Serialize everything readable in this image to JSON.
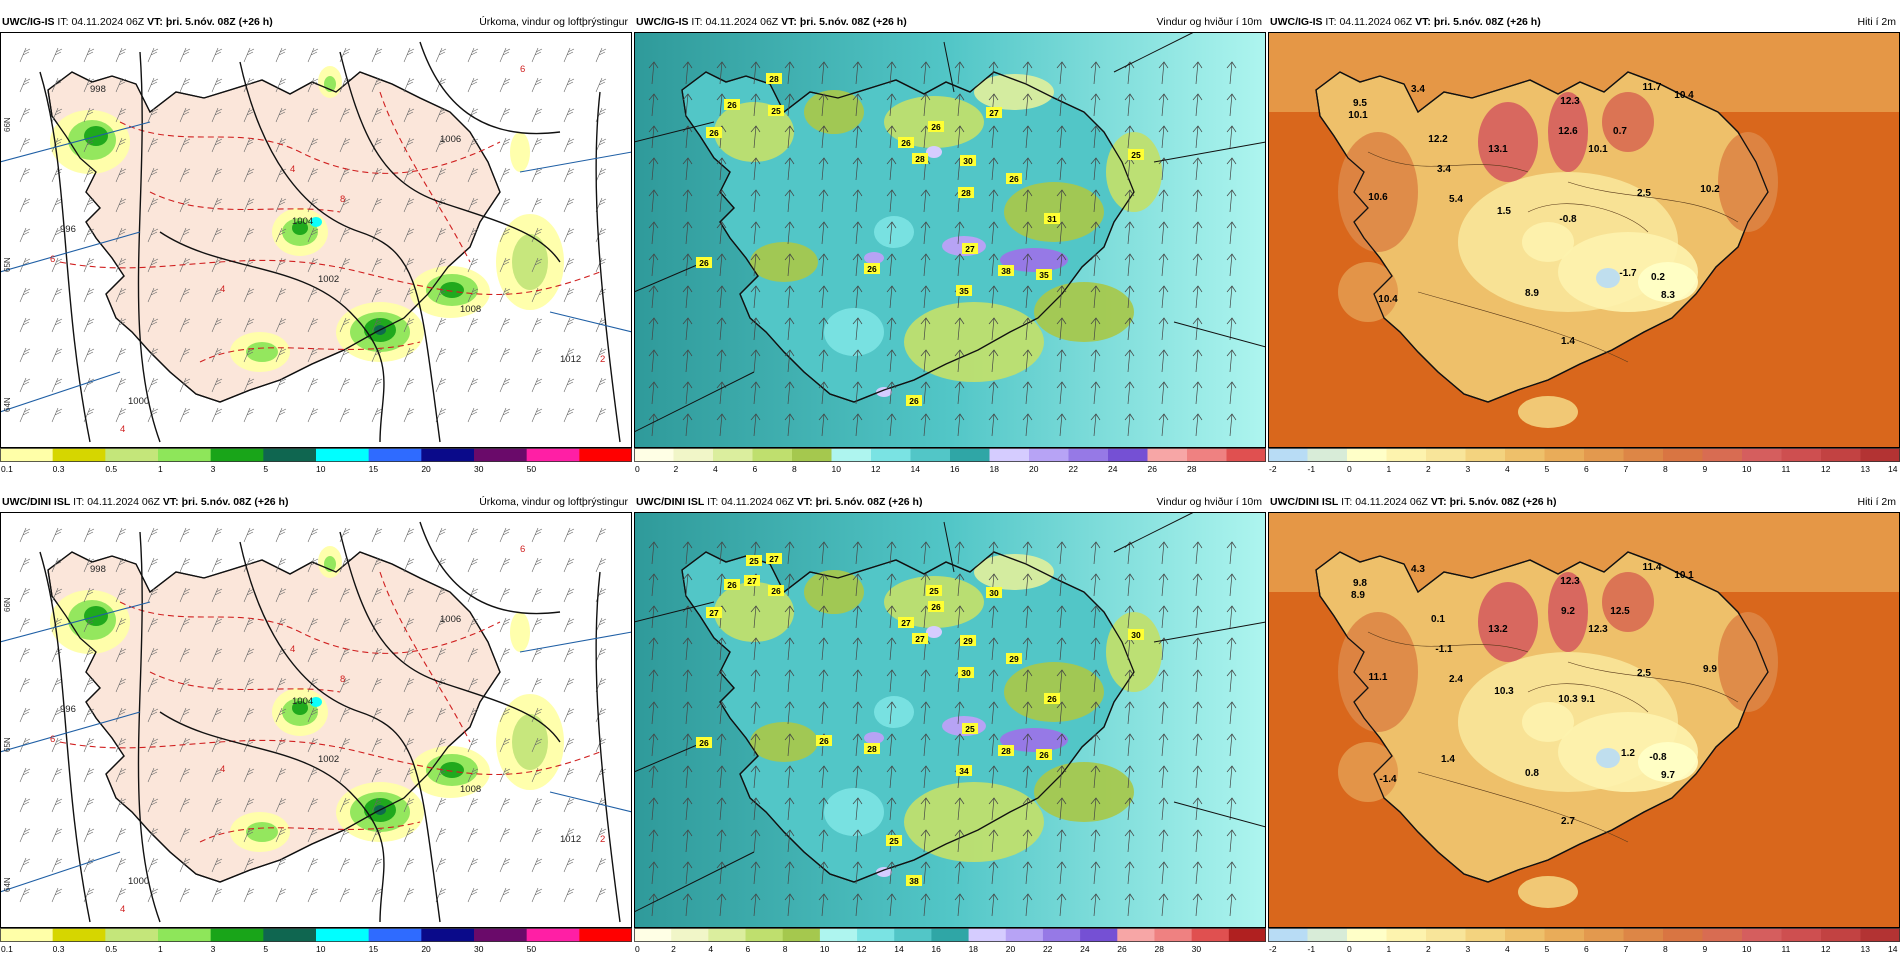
{
  "colors": {
    "land_precip": "#fbe6da",
    "sea_temp": "#d9671c",
    "sea_wind": "#3ea5a0",
    "iso_black": "#111111",
    "iso_red": "#d02020",
    "label_yellow": "#ffff33"
  },
  "rows": [
    {
      "model": "UWC/IG-IS",
      "panels": [
        {
          "type": "precip",
          "id": "UWC/IG-IS",
          "it_label": "IT:",
          "it_value": "04.11.2024 06Z",
          "vt_label": "VT:",
          "vt_value": "þri. 5.nóv. 08Z (+26 h)",
          "title": "Úrkoma, vindur og loftþrýstingur",
          "isobars": [
            "1006",
            "1004",
            "1002",
            "1000",
            "998",
            "996",
            "1008",
            "1012"
          ],
          "latlabels": [
            "66N",
            "65N",
            "64N"
          ],
          "red_labels": [
            "6",
            "4",
            "8",
            "6",
            "2",
            "4",
            "4"
          ]
        },
        {
          "type": "wind",
          "id": "UWC/IG-IS",
          "it_label": "IT:",
          "it_value": "04.11.2024 06Z",
          "vt_label": "VT:",
          "vt_value": "þri. 5.nóv. 08Z (+26 h)",
          "title": "Vindur og hviður í 10m",
          "gusts": [
            "28",
            "26",
            "25",
            "26",
            "26",
            "26",
            "28",
            "27",
            "30",
            "28",
            "26",
            "25",
            "31",
            "26",
            "26",
            "27",
            "38",
            "35",
            "35",
            "26"
          ]
        },
        {
          "type": "temp",
          "id": "UWC/IG-IS",
          "it_label": "IT:",
          "it_value": "04.11.2024 06Z",
          "vt_label": "VT:",
          "vt_value": "þri. 5.nóv. 08Z (+26 h)",
          "title": "Hiti í 2m",
          "temps": [
            "3.4",
            "9.5",
            "10.1",
            "12.2",
            "13.1",
            "12.3",
            "12.6",
            "11.7",
            "10.4",
            "0.7",
            "10.1",
            "10.6",
            "3.4",
            "5.4",
            "1.5",
            "-0.8",
            "2.5",
            "10.2",
            "-1.7",
            "0.2",
            "10.4",
            "8.9",
            "8.3",
            "1.4"
          ]
        }
      ]
    },
    {
      "model": "UWC/DINI ISL",
      "panels": [
        {
          "type": "precip",
          "id": "UWC/DINI ISL",
          "it_label": "IT:",
          "it_value": "04.11.2024 06Z",
          "vt_label": "VT:",
          "vt_value": "þri. 5.nóv. 08Z (+26 h)",
          "title": "Úrkoma, vindur og loftþrýstingur",
          "isobars": [
            "1006",
            "1004",
            "1002",
            "1000",
            "998",
            "996",
            "1008",
            "1012"
          ],
          "latlabels": [
            "66N",
            "65N",
            "64N"
          ],
          "red_labels": [
            "6",
            "4",
            "8",
            "6",
            "2",
            "4",
            "4"
          ]
        },
        {
          "type": "wind",
          "id": "UWC/DINI ISL",
          "it_label": "IT:",
          "it_value": "04.11.2024 06Z",
          "vt_label": "VT:",
          "vt_value": "þri. 5.nóv. 08Z (+26 h)",
          "title": "Vindur og hviður í 10m",
          "gusts": [
            "27",
            "26",
            "26",
            "27",
            "27",
            "26",
            "27",
            "30",
            "29",
            "30",
            "29",
            "30",
            "26",
            "26",
            "28",
            "25",
            "28",
            "26",
            "34",
            "38",
            "27",
            "25",
            "25",
            "25",
            "26"
          ]
        },
        {
          "type": "temp",
          "id": "UWC/DINI ISL",
          "it_label": "IT:",
          "it_value": "04.11.2024 06Z",
          "vt_label": "VT:",
          "vt_value": "þri. 5.nóv. 08Z (+26 h)",
          "title": "Hiti í 2m",
          "temps": [
            "4.3",
            "9.8",
            "8.9",
            "0.1",
            "13.2",
            "12.3",
            "9.2",
            "11.4",
            "10.1",
            "12.5",
            "12.3",
            "11.1",
            "-1.1",
            "2.4",
            "10.3",
            "10.3",
            "2.5",
            "9.9",
            "1.2",
            "-0.8",
            "-1.4",
            "0.8",
            "9.7",
            "2.7",
            "9.1",
            "1.4"
          ]
        }
      ]
    }
  ],
  "colorbars": {
    "precip": {
      "colors": [
        "#ffffa8",
        "#d6d600",
        "#c4e67a",
        "#8ee65a",
        "#19a519",
        "#0f6650",
        "#00ffff",
        "#2f6bff",
        "#0a0a8a",
        "#6a0a6a",
        "#ff1fa5",
        "#ff0000"
      ],
      "labels": [
        "0.1",
        "0.3",
        "0.5",
        "1",
        "3",
        "5",
        "10",
        "15",
        "20",
        "30",
        "50"
      ]
    },
    "wind_top": {
      "colors": [
        "#ffffe5",
        "#f1f6c8",
        "#dbee9e",
        "#bfdf6e",
        "#a5c84e",
        "#aef5ef",
        "#7ae3e3",
        "#52c6c7",
        "#2fa6a6",
        "#d5ccff",
        "#b7a3f5",
        "#9679e6",
        "#7550d4",
        "#f7a6a6",
        "#ef8181",
        "#e05050"
      ],
      "labels": [
        "0",
        "2",
        "4",
        "6",
        "8",
        "10",
        "12",
        "14",
        "16",
        "18",
        "20",
        "22",
        "24",
        "26",
        "28"
      ]
    },
    "wind_bottom": {
      "colors": [
        "#ffffe5",
        "#f1f6c8",
        "#dbee9e",
        "#bfdf6e",
        "#a5c84e",
        "#aef5ef",
        "#7ae3e3",
        "#52c6c7",
        "#2fa6a6",
        "#d5ccff",
        "#b7a3f5",
        "#9679e6",
        "#7550d4",
        "#f7a6a6",
        "#ef8181",
        "#e05050",
        "#b02020"
      ],
      "labels": [
        "0",
        "2",
        "4",
        "6",
        "8",
        "10",
        "12",
        "14",
        "16",
        "18",
        "20",
        "22",
        "24",
        "26",
        "28",
        "30"
      ]
    },
    "temp": {
      "colors": [
        "#b8dcf5",
        "#d8ecd8",
        "#ffffc8",
        "#fdf3ae",
        "#f8e59a",
        "#f3d37f",
        "#eec06a",
        "#e9ac59",
        "#e3994e",
        "#dd8646",
        "#d97542",
        "#d86c52",
        "#d55e5e",
        "#ce4f50",
        "#c24242",
        "#b33333"
      ],
      "labels": [
        "-2",
        "-1",
        "0",
        "1",
        "2",
        "3",
        "4",
        "5",
        "6",
        "7",
        "8",
        "9",
        "10",
        "11",
        "12",
        "13",
        "14"
      ]
    }
  }
}
